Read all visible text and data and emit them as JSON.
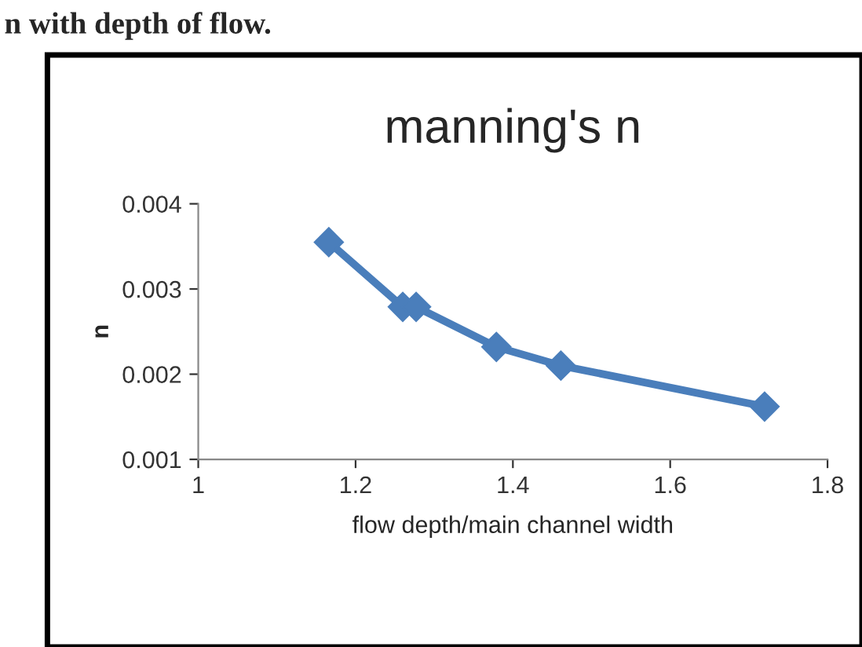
{
  "chart_data": {
    "type": "line",
    "title": "manning's n",
    "xlabel": "flow depth/main channel width",
    "ylabel": "n",
    "annotations": [
      "n with depth of flow."
    ],
    "x": [
      1.166,
      1.26,
      1.277,
      1.379,
      1.461,
      1.72
    ],
    "series": [
      {
        "color": "#4a7ebb",
        "values": [
          0.00355,
          0.00279,
          0.00279,
          0.00232,
          0.0021,
          0.00162
        ]
      }
    ],
    "xlim": [
      1,
      1.8
    ],
    "xticks": [
      1,
      1.2,
      1.4,
      1.6,
      1.8
    ],
    "ylim": [
      0.001,
      0.004
    ],
    "yticks": [
      0.001,
      0.002,
      0.003,
      0.004
    ],
    "marker": "diamond",
    "line_style": "solid",
    "grid": false,
    "legend": false
  }
}
